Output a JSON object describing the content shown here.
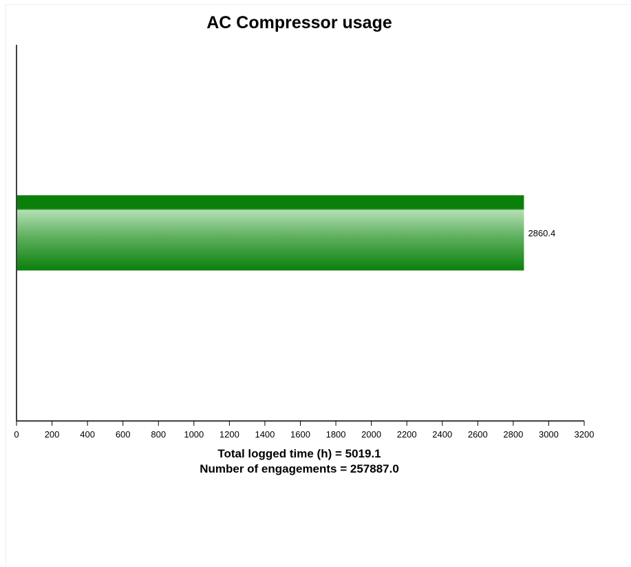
{
  "chart_data": {
    "type": "bar",
    "orientation": "horizontal",
    "title": "AC Compressor usage",
    "categories": [
      ""
    ],
    "values": [
      2860.4
    ],
    "value_labels": [
      "2860.4"
    ],
    "xlim": [
      0,
      3200
    ],
    "x_ticks": [
      0,
      200,
      400,
      600,
      800,
      1000,
      1200,
      1400,
      1600,
      1800,
      2000,
      2200,
      2400,
      2600,
      2800,
      3000,
      3200
    ],
    "x_tick_labels": [
      "0",
      "200",
      "400",
      "600",
      "800",
      "1000",
      "1200",
      "1400",
      "1600",
      "1800",
      "2000",
      "2200",
      "2400",
      "2600",
      "2800",
      "3000",
      "3200"
    ],
    "grid": false,
    "legend": "none",
    "colors": {
      "bar_dark": "#0a7f0a",
      "bar_light": "#a8d8a8",
      "axis": "#000000"
    },
    "footer": {
      "line1": "Total logged time (h) = 5019.1",
      "line2": "Number of engagements = 257887.0"
    }
  }
}
